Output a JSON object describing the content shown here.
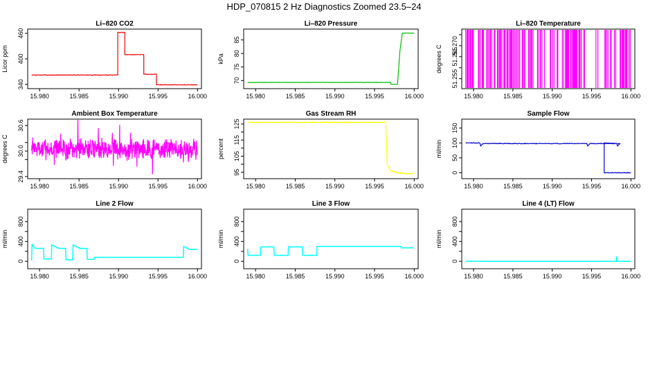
{
  "title": "HDP_070815  2 Hz Diagnostics Zoomed 23.5–24",
  "chart_data": [
    {
      "type": "line",
      "title": "Li–820 CO2",
      "ylabel": "Licor ppm",
      "color": "#ee0000",
      "xlim": [
        15.9785,
        16.0005
      ],
      "ylim": [
        330,
        470
      ],
      "xticks": [
        15.98,
        15.985,
        15.99,
        15.995,
        16.0
      ],
      "xticklabels": [
        "15.980",
        "15.985",
        "15.990",
        "15.995",
        "16.000"
      ],
      "yticks": [
        340,
        400,
        460
      ],
      "yticklabels": [
        "340",
        "400",
        "460"
      ],
      "noise": 0.6,
      "x": [
        15.979,
        15.9899,
        15.9899,
        15.9908,
        15.9908,
        15.9932,
        15.9932,
        15.9948,
        15.9948,
        16.0
      ],
      "y": [
        362,
        362,
        462,
        462,
        410,
        410,
        364,
        364,
        339,
        339
      ]
    },
    {
      "type": "line",
      "title": "Li–820 Pressure",
      "ylabel": "kPa",
      "color": "#00bb00",
      "xlim": [
        15.9785,
        16.0005
      ],
      "ylim": [
        67,
        89
      ],
      "xticks": [
        15.98,
        15.985,
        15.99,
        15.995,
        16.0
      ],
      "xticklabels": [
        "15.980",
        "15.985",
        "15.990",
        "15.995",
        "16.000"
      ],
      "yticks": [
        70,
        75,
        80,
        85
      ],
      "yticklabels": [
        "70",
        "75",
        "80",
        "85"
      ],
      "noise": 0.05,
      "x": [
        15.979,
        15.997,
        15.9971,
        15.9979,
        15.9982,
        15.9985,
        16.0
      ],
      "y": [
        69.3,
        69.3,
        68.6,
        68.6,
        81,
        87.5,
        87.5
      ]
    },
    {
      "type": "spikes",
      "title": "Li–820 Temperature",
      "ylabel": "degrees C",
      "color": "#ff00ff",
      "xlim": [
        15.9785,
        16.0005
      ],
      "ylim": [
        51.2505,
        51.2775
      ],
      "xticks": [
        15.98,
        15.985,
        15.99,
        15.995,
        16.0
      ],
      "xticklabels": [
        "15.980",
        "15.985",
        "15.990",
        "15.995",
        "16.000"
      ],
      "yticks": [
        51.255,
        51.26,
        51.265,
        51.27,
        51.275
      ],
      "yticklabels": [
        "51.255",
        "",
        "51.265",
        "51.270",
        ""
      ],
      "base": 51.2505,
      "top": 51.2775,
      "density": 0.35,
      "seed": 11
    },
    {
      "type": "noise",
      "title": "Ambient Box Temperature",
      "ylabel": "degrees C",
      "color": "#ff00ff",
      "xlim": [
        15.9785,
        16.0005
      ],
      "ylim": [
        29.35,
        30.75
      ],
      "xticks": [
        15.98,
        15.985,
        15.99,
        15.995,
        16.0
      ],
      "xticklabels": [
        "15.980",
        "15.985",
        "15.990",
        "15.995",
        "16.000"
      ],
      "yticks": [
        29.4,
        29.8,
        30.0,
        30.2,
        30.6
      ],
      "yticklabels": [
        "29.4",
        "",
        "30.0",
        "",
        "30.6"
      ],
      "center": 30.05,
      "amp": 0.2,
      "seed": 7
    },
    {
      "type": "line",
      "title": "Gas Stream RH",
      "ylabel": "percent",
      "color": "#ffff00",
      "xlim": [
        15.9785,
        16.0005
      ],
      "ylim": [
        91,
        128
      ],
      "xticks": [
        15.98,
        15.985,
        15.99,
        15.995,
        16.0
      ],
      "xticklabels": [
        "15.980",
        "15.985",
        "15.990",
        "15.995",
        "16.000"
      ],
      "yticks": [
        95,
        100,
        105,
        110,
        115,
        120,
        125
      ],
      "yticklabels": [
        "95",
        "",
        "105",
        "",
        "115",
        "",
        "125"
      ],
      "noise": 0.3,
      "x": [
        15.979,
        15.9964,
        15.9966,
        15.997,
        15.998,
        16.0
      ],
      "y": [
        126,
        126,
        100,
        96,
        94.5,
        94
      ]
    },
    {
      "type": "line",
      "title": "Sample Flow",
      "ylabel": "ml/min",
      "color": "#0000cc",
      "xlim": [
        15.9785,
        16.0005
      ],
      "ylim": [
        -20,
        180
      ],
      "xticks": [
        15.98,
        15.985,
        15.99,
        15.995,
        16.0
      ],
      "xticklabels": [
        "15.980",
        "15.985",
        "15.990",
        "15.995",
        "16.000"
      ],
      "yticks": [
        0,
        50,
        100,
        150
      ],
      "yticklabels": [
        "0",
        "50",
        "100",
        "150"
      ],
      "noise": 1,
      "x": [
        15.979,
        15.9808,
        15.9809,
        15.9812,
        15.9944,
        15.9945,
        15.9948,
        15.9982,
        15.9983,
        15.9986,
        15.9966,
        15.9966,
        16.0
      ],
      "y": [
        100,
        100,
        90,
        98,
        98,
        90,
        98,
        98,
        90,
        98,
        100,
        0,
        0
      ]
    },
    {
      "type": "line",
      "title": "Line 2 Flow",
      "ylabel": "ml/min",
      "color": "#00ffff",
      "xlim": [
        15.9785,
        16.0005
      ],
      "ylim": [
        -150,
        1050
      ],
      "xticks": [
        15.98,
        15.985,
        15.99,
        15.995,
        16.0
      ],
      "xticklabels": [
        "15.980",
        "15.985",
        "15.990",
        "15.995",
        "16.000"
      ],
      "yticks": [
        0,
        200,
        400,
        600,
        800
      ],
      "yticklabels": [
        "0",
        "",
        "400",
        "",
        "800"
      ],
      "noise": 0,
      "x": [
        15.979,
        15.97905,
        15.9793,
        15.9796,
        15.9805,
        15.98055,
        15.9815,
        15.98155,
        15.9824,
        15.9833,
        15.98335,
        15.9842,
        15.98425,
        15.9851,
        15.986,
        15.98605,
        15.9869,
        15.98695,
        15.9982,
        15.99825,
        15.999,
        16.0
      ],
      "y": [
        20,
        350,
        270,
        260,
        260,
        50,
        50,
        330,
        260,
        260,
        30,
        30,
        330,
        260,
        260,
        40,
        40,
        80,
        80,
        300,
        240,
        240
      ]
    },
    {
      "type": "line",
      "title": "Line 3 Flow",
      "ylabel": "ml/min",
      "color": "#00ffff",
      "xlim": [
        15.9785,
        16.0005
      ],
      "ylim": [
        -150,
        1050
      ],
      "xticks": [
        15.98,
        15.985,
        15.99,
        15.995,
        16.0
      ],
      "xticklabels": [
        "15.980",
        "15.985",
        "15.990",
        "15.995",
        "16.000"
      ],
      "yticks": [
        0,
        200,
        400,
        600,
        800
      ],
      "yticklabels": [
        "0",
        "",
        "400",
        "",
        "800"
      ],
      "noise": 0,
      "x": [
        15.979,
        15.97905,
        15.97925,
        15.9806,
        15.98065,
        15.9823,
        15.98235,
        15.9841,
        15.98415,
        15.9859,
        15.98595,
        15.9877,
        15.98775,
        15.9983,
        15.9984,
        16.0
      ],
      "y": [
        250,
        120,
        120,
        120,
        290,
        290,
        120,
        120,
        290,
        290,
        120,
        120,
        300,
        300,
        270,
        270
      ]
    },
    {
      "type": "line",
      "title": "Line 4 (LT) Flow",
      "ylabel": "ml/min",
      "color": "#00ffff",
      "xlim": [
        15.9785,
        16.0005
      ],
      "ylim": [
        -150,
        1050
      ],
      "xticks": [
        15.98,
        15.985,
        15.99,
        15.995,
        16.0
      ],
      "xticklabels": [
        "15.980",
        "15.985",
        "15.990",
        "15.995",
        "16.000"
      ],
      "yticks": [
        0,
        200,
        400,
        600,
        800
      ],
      "yticklabels": [
        "0",
        "",
        "400",
        "",
        "800"
      ],
      "noise": 0,
      "x": [
        15.979,
        15.99815,
        15.9982,
        15.99825,
        15.9983,
        16.0
      ],
      "y": [
        0,
        0,
        100,
        0,
        0,
        0
      ]
    }
  ]
}
